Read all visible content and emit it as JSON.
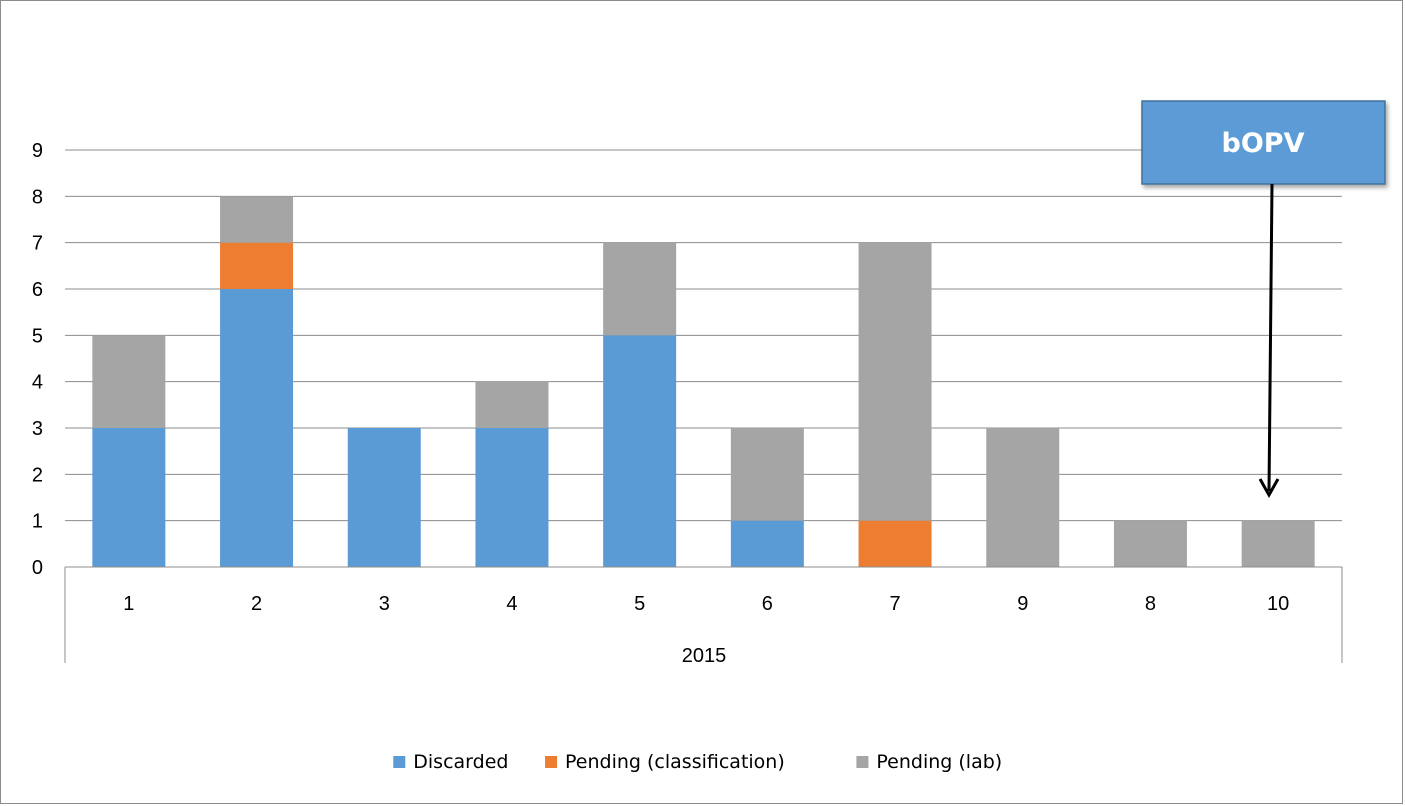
{
  "chart_data": {
    "type": "bar",
    "stacked": true,
    "title": "",
    "xlabel": "",
    "ylabel": "",
    "group_label": "2015",
    "categories": [
      "1",
      "2",
      "3",
      "4",
      "5",
      "6",
      "7",
      "9",
      "8",
      "10"
    ],
    "series": [
      {
        "name": "Discarded",
        "color": "#5b9bd5",
        "values": [
          3,
          6,
          3,
          3,
          5,
          1,
          0,
          0,
          0,
          0
        ]
      },
      {
        "name": "Pending (classification)",
        "color": "#ed7d31",
        "values": [
          0,
          1,
          0,
          0,
          0,
          0,
          1,
          0,
          0,
          0
        ]
      },
      {
        "name": "Pending (lab)",
        "color": "#a5a5a5",
        "values": [
          2,
          1,
          0,
          1,
          2,
          2,
          6,
          3,
          1,
          1
        ]
      }
    ],
    "ylim": [
      0,
      9
    ],
    "yticks": [
      0,
      1,
      2,
      3,
      4,
      5,
      6,
      7,
      8,
      9
    ],
    "grid": true,
    "legend_position": "bottom",
    "annotation": {
      "text": "bOPV",
      "box_color": "#5b9bd5",
      "points_to_category": "10"
    }
  }
}
